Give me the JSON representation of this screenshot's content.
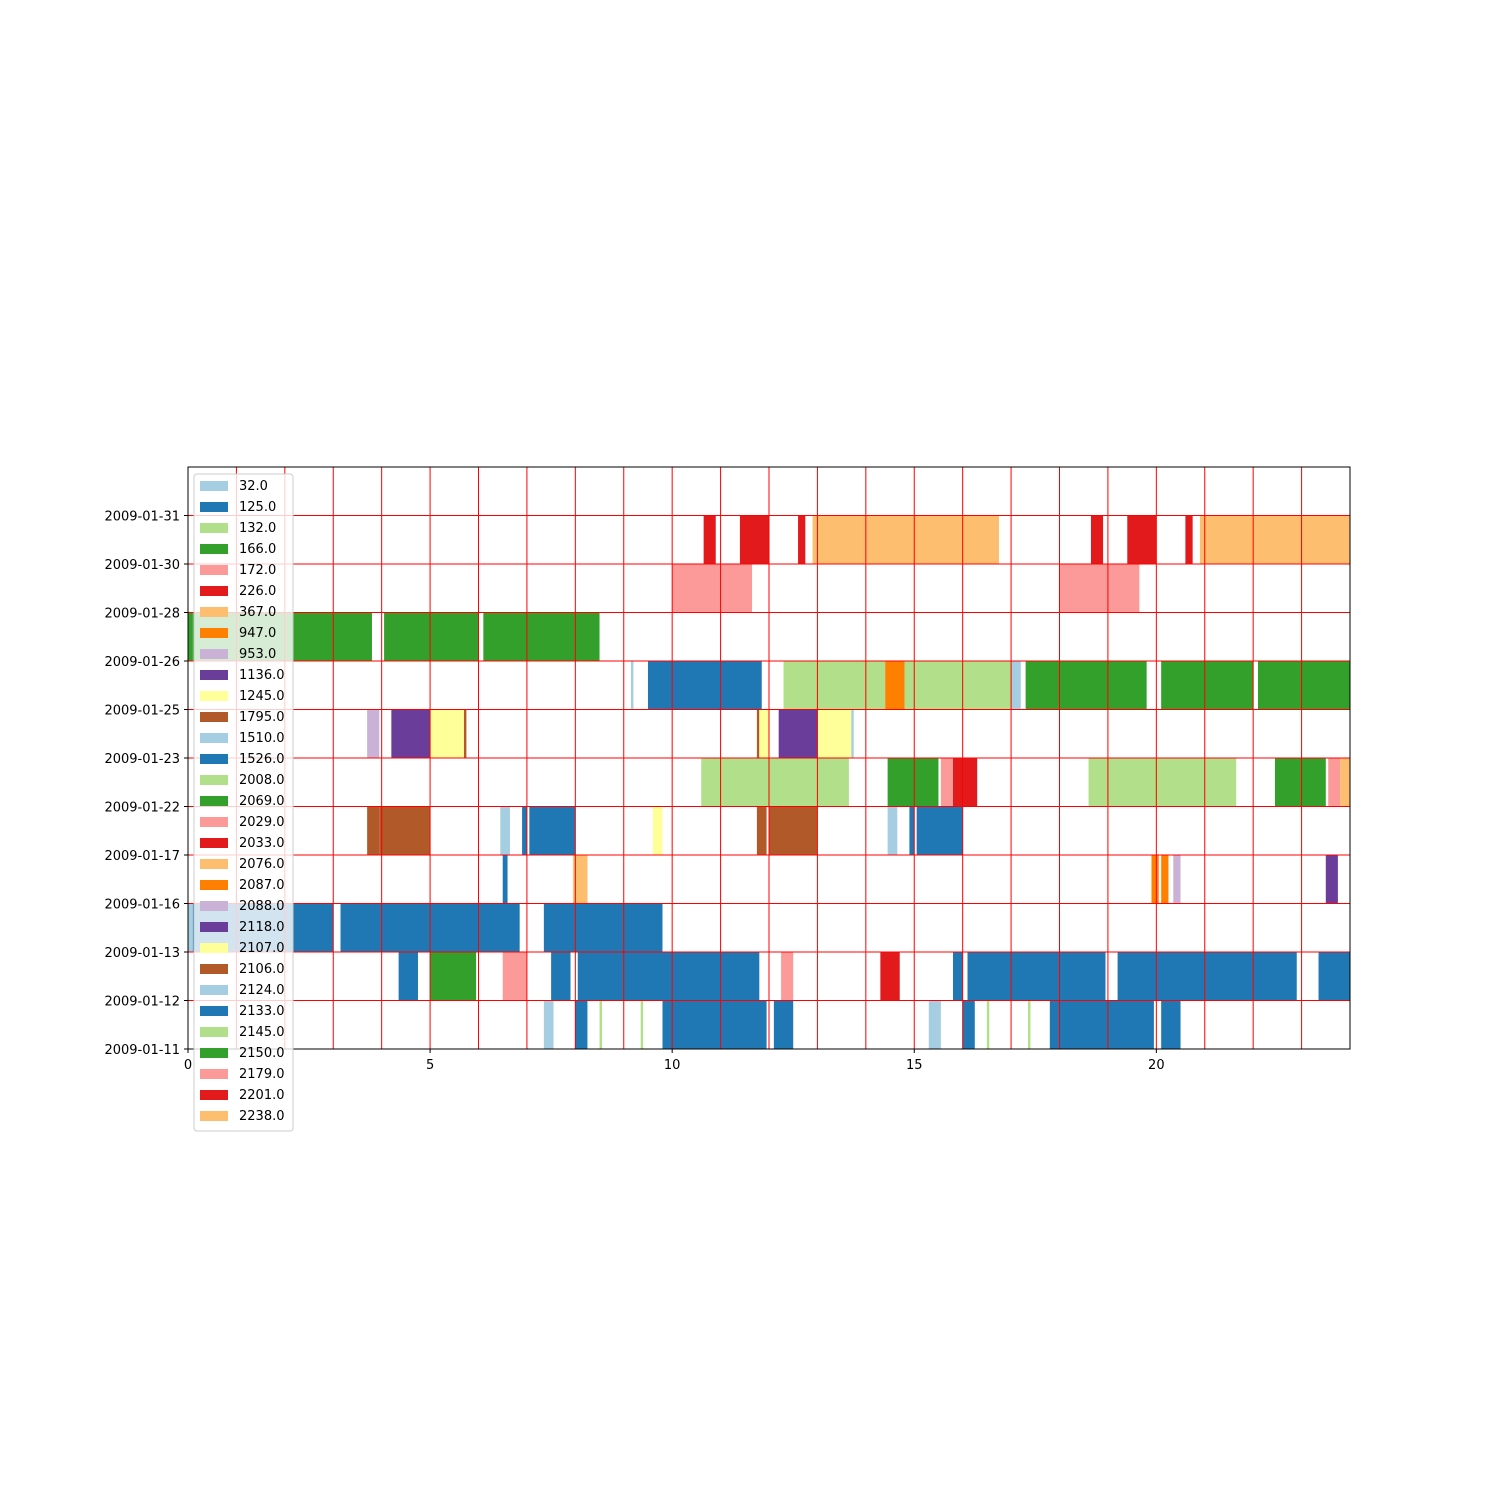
{
  "chart_data": {
    "type": "bar",
    "orientation": "horizontal-timeline",
    "title": "",
    "xlabel": "",
    "ylabel": "",
    "xlim": [
      0,
      24
    ],
    "x_ticks": [
      "0",
      "5",
      "10",
      "15",
      "20"
    ],
    "x_tick_values": [
      0,
      5,
      10,
      15,
      20
    ],
    "y_ticks": [
      "2009-01-11",
      "2009-01-12",
      "2009-01-13",
      "2009-01-16",
      "2009-01-17",
      "2009-01-22",
      "2009-01-23",
      "2009-01-25",
      "2009-01-26",
      "2009-01-28",
      "2009-01-30",
      "2009-01-31"
    ],
    "grid": true,
    "grid_color": "#ff0000",
    "grid_x_step": 1,
    "legend_position": "upper-left",
    "legend": [
      {
        "label": "32.0",
        "color": "#a6cee3"
      },
      {
        "label": "125.0",
        "color": "#1f78b4"
      },
      {
        "label": "132.0",
        "color": "#b2df8a"
      },
      {
        "label": "166.0",
        "color": "#33a02c"
      },
      {
        "label": "172.0",
        "color": "#fb9a99"
      },
      {
        "label": "226.0",
        "color": "#e31a1c"
      },
      {
        "label": "367.0",
        "color": "#fdbf6f"
      },
      {
        "label": "947.0",
        "color": "#ff7f00"
      },
      {
        "label": "953.0",
        "color": "#cab2d6"
      },
      {
        "label": "1136.0",
        "color": "#6a3d9a"
      },
      {
        "label": "1245.0",
        "color": "#ffff99"
      },
      {
        "label": "1795.0",
        "color": "#b15928"
      },
      {
        "label": "1510.0",
        "color": "#a6cee3"
      },
      {
        "label": "1526.0",
        "color": "#1f78b4"
      },
      {
        "label": "2008.0",
        "color": "#b2df8a"
      },
      {
        "label": "2069.0",
        "color": "#33a02c"
      },
      {
        "label": "2029.0",
        "color": "#fb9a99"
      },
      {
        "label": "2033.0",
        "color": "#e31a1c"
      },
      {
        "label": "2076.0",
        "color": "#fdbf6f"
      },
      {
        "label": "2087.0",
        "color": "#ff7f00"
      },
      {
        "label": "2088.0",
        "color": "#cab2d6"
      },
      {
        "label": "2118.0",
        "color": "#6a3d9a"
      },
      {
        "label": "2107.0",
        "color": "#ffff99"
      },
      {
        "label": "2106.0",
        "color": "#b15928"
      },
      {
        "label": "2124.0",
        "color": "#a6cee3"
      },
      {
        "label": "2133.0",
        "color": "#1f78b4"
      },
      {
        "label": "2145.0",
        "color": "#b2df8a"
      },
      {
        "label": "2150.0",
        "color": "#33a02c"
      },
      {
        "label": "2179.0",
        "color": "#fb9a99"
      },
      {
        "label": "2201.0",
        "color": "#e31a1c"
      },
      {
        "label": "2238.0",
        "color": "#fdbf6f"
      }
    ],
    "series": [
      {
        "date": "2009-01-11",
        "segments": [
          {
            "start": 7.35,
            "end": 7.55,
            "color": "#a6cee3"
          },
          {
            "start": 8.0,
            "end": 8.25,
            "color": "#1f78b4"
          },
          {
            "start": 8.5,
            "end": 8.55,
            "color": "#b2df8a"
          },
          {
            "start": 9.35,
            "end": 9.4,
            "color": "#b2df8a"
          },
          {
            "start": 9.8,
            "end": 11.95,
            "color": "#1f78b4"
          },
          {
            "start": 12.1,
            "end": 12.5,
            "color": "#1f78b4"
          },
          {
            "start": 15.3,
            "end": 15.55,
            "color": "#a6cee3"
          },
          {
            "start": 16.0,
            "end": 16.25,
            "color": "#1f78b4"
          },
          {
            "start": 16.5,
            "end": 16.55,
            "color": "#b2df8a"
          },
          {
            "start": 17.35,
            "end": 17.4,
            "color": "#b2df8a"
          },
          {
            "start": 17.8,
            "end": 19.95,
            "color": "#1f78b4"
          },
          {
            "start": 20.1,
            "end": 20.5,
            "color": "#1f78b4"
          }
        ]
      },
      {
        "date": "2009-01-12",
        "segments": [
          {
            "start": 4.35,
            "end": 4.75,
            "color": "#1f78b4"
          },
          {
            "start": 5.0,
            "end": 5.95,
            "color": "#33a02c"
          },
          {
            "start": 6.5,
            "end": 7.0,
            "color": "#fb9a99"
          },
          {
            "start": 7.5,
            "end": 7.9,
            "color": "#1f78b4"
          },
          {
            "start": 8.05,
            "end": 11.8,
            "color": "#1f78b4"
          },
          {
            "start": 12.25,
            "end": 12.5,
            "color": "#fb9a99"
          },
          {
            "start": 14.3,
            "end": 14.7,
            "color": "#e31a1c"
          },
          {
            "start": 15.8,
            "end": 16.0,
            "color": "#1f78b4"
          },
          {
            "start": 16.1,
            "end": 18.95,
            "color": "#1f78b4"
          },
          {
            "start": 19.2,
            "end": 22.9,
            "color": "#1f78b4"
          },
          {
            "start": 23.35,
            "end": 24.0,
            "color": "#1f78b4"
          }
        ]
      },
      {
        "date": "2009-01-13",
        "segments": [
          {
            "start": 0.0,
            "end": 0.1,
            "color": "#a6cee3"
          },
          {
            "start": 0.1,
            "end": 3.0,
            "color": "#1f78b4"
          },
          {
            "start": 3.15,
            "end": 6.85,
            "color": "#1f78b4"
          },
          {
            "start": 7.35,
            "end": 9.8,
            "color": "#1f78b4"
          }
        ]
      },
      {
        "date": "2009-01-16",
        "segments": [
          {
            "start": 6.5,
            "end": 6.6,
            "color": "#1f78b4"
          },
          {
            "start": 7.95,
            "end": 8.25,
            "color": "#fdbf6f"
          },
          {
            "start": 19.9,
            "end": 20.05,
            "color": "#ff7f00"
          },
          {
            "start": 20.1,
            "end": 20.25,
            "color": "#ff7f00"
          },
          {
            "start": 20.35,
            "end": 20.5,
            "color": "#cab2d6"
          },
          {
            "start": 23.5,
            "end": 23.75,
            "color": "#6a3d9a"
          }
        ]
      },
      {
        "date": "2009-01-17",
        "segments": [
          {
            "start": 3.7,
            "end": 3.95,
            "color": "#b15928"
          },
          {
            "start": 3.95,
            "end": 5.0,
            "color": "#b15928"
          },
          {
            "start": 6.45,
            "end": 6.65,
            "color": "#a6cee3"
          },
          {
            "start": 6.9,
            "end": 7.0,
            "color": "#1f78b4"
          },
          {
            "start": 7.05,
            "end": 8.0,
            "color": "#1f78b4"
          },
          {
            "start": 9.6,
            "end": 9.8,
            "color": "#ffff99"
          },
          {
            "start": 11.75,
            "end": 11.95,
            "color": "#b15928"
          },
          {
            "start": 12.0,
            "end": 13.0,
            "color": "#b15928"
          },
          {
            "start": 14.45,
            "end": 14.65,
            "color": "#a6cee3"
          },
          {
            "start": 14.9,
            "end": 15.0,
            "color": "#1f78b4"
          },
          {
            "start": 15.05,
            "end": 16.0,
            "color": "#1f78b4"
          }
        ]
      },
      {
        "date": "2009-01-22",
        "segments": [
          {
            "start": 10.6,
            "end": 13.65,
            "color": "#b2df8a"
          },
          {
            "start": 14.45,
            "end": 15.5,
            "color": "#33a02c"
          },
          {
            "start": 15.55,
            "end": 15.8,
            "color": "#fb9a99"
          },
          {
            "start": 15.8,
            "end": 16.3,
            "color": "#e31a1c"
          },
          {
            "start": 18.6,
            "end": 21.65,
            "color": "#b2df8a"
          },
          {
            "start": 22.45,
            "end": 23.5,
            "color": "#33a02c"
          },
          {
            "start": 23.55,
            "end": 23.8,
            "color": "#fb9a99"
          },
          {
            "start": 23.8,
            "end": 24.0,
            "color": "#fdbf6f"
          }
        ]
      },
      {
        "date": "2009-01-23",
        "segments": [
          {
            "start": 3.7,
            "end": 3.8,
            "color": "#cab2d6"
          },
          {
            "start": 3.8,
            "end": 3.95,
            "color": "#cab2d6"
          },
          {
            "start": 4.2,
            "end": 5.0,
            "color": "#6a3d9a"
          },
          {
            "start": 5.0,
            "end": 5.7,
            "color": "#ffff99"
          },
          {
            "start": 5.7,
            "end": 5.75,
            "color": "#b15928"
          },
          {
            "start": 11.75,
            "end": 11.8,
            "color": "#b15928"
          },
          {
            "start": 11.8,
            "end": 12.0,
            "color": "#ffff99"
          },
          {
            "start": 12.2,
            "end": 13.0,
            "color": "#6a3d9a"
          },
          {
            "start": 13.0,
            "end": 13.7,
            "color": "#ffff99"
          },
          {
            "start": 13.7,
            "end": 13.75,
            "color": "#a6cee3"
          }
        ]
      },
      {
        "date": "2009-01-25",
        "segments": [
          {
            "start": 9.15,
            "end": 9.2,
            "color": "#a6cee3"
          },
          {
            "start": 9.5,
            "end": 11.85,
            "color": "#1f78b4"
          },
          {
            "start": 12.3,
            "end": 14.4,
            "color": "#b2df8a"
          },
          {
            "start": 14.4,
            "end": 14.8,
            "color": "#ff7f00"
          },
          {
            "start": 14.8,
            "end": 17.0,
            "color": "#b2df8a"
          },
          {
            "start": 17.0,
            "end": 17.2,
            "color": "#a6cee3"
          },
          {
            "start": 17.3,
            "end": 19.8,
            "color": "#33a02c"
          },
          {
            "start": 20.1,
            "end": 22.0,
            "color": "#33a02c"
          },
          {
            "start": 22.1,
            "end": 24.0,
            "color": "#33a02c"
          }
        ]
      },
      {
        "date": "2009-01-26",
        "segments": [
          {
            "start": 0.0,
            "end": 0.1,
            "color": "#33a02c"
          },
          {
            "start": 0.1,
            "end": 3.8,
            "color": "#33a02c"
          },
          {
            "start": 4.05,
            "end": 6.0,
            "color": "#33a02c"
          },
          {
            "start": 6.1,
            "end": 8.5,
            "color": "#33a02c"
          }
        ]
      },
      {
        "date": "2009-01-28",
        "segments": [
          {
            "start": 10.0,
            "end": 11.65,
            "color": "#fb9a99"
          },
          {
            "start": 18.0,
            "end": 19.65,
            "color": "#fb9a99"
          }
        ]
      },
      {
        "date": "2009-01-30",
        "segments": [
          {
            "start": 10.65,
            "end": 10.9,
            "color": "#e31a1c"
          },
          {
            "start": 11.4,
            "end": 12.0,
            "color": "#e31a1c"
          },
          {
            "start": 12.6,
            "end": 12.75,
            "color": "#e31a1c"
          },
          {
            "start": 12.9,
            "end": 16.75,
            "color": "#fdbf6f"
          },
          {
            "start": 18.65,
            "end": 18.9,
            "color": "#e31a1c"
          },
          {
            "start": 19.4,
            "end": 20.0,
            "color": "#e31a1c"
          },
          {
            "start": 20.6,
            "end": 20.75,
            "color": "#e31a1c"
          },
          {
            "start": 20.9,
            "end": 24.0,
            "color": "#fdbf6f"
          }
        ]
      }
    ]
  }
}
